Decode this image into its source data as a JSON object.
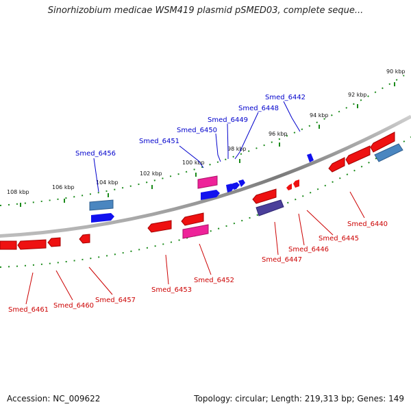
{
  "header": {
    "title": "Sinorhizobium medicae WSM419 plasmid pSMED03, complete seque..."
  },
  "footer": {
    "accession": "Accession: NC_009622",
    "summary": "Topology: circular; Length: 219,313 bp; Genes: 149"
  },
  "colors": {
    "forward_label": "#0000cc",
    "reverse_label": "#cc0000",
    "gene_red": "#ee1111",
    "gene_blue": "#1111ee",
    "gene_pink": "#ee2299",
    "gene_steel": "#4a86c0",
    "gene_purple": "#4a3f9a",
    "backbone": "#888888",
    "tick": "#1a8a1a"
  },
  "ticks": [
    {
      "label": "108 kbp"
    },
    {
      "label": "106 kbp"
    },
    {
      "label": "104 kbp"
    },
    {
      "label": "102 kbp"
    },
    {
      "label": "100 kbp"
    },
    {
      "label": "98 kbp"
    },
    {
      "label": "96 kbp"
    },
    {
      "label": "94 kbp"
    },
    {
      "label": "92 kbp"
    },
    {
      "label": "90 kbp"
    }
  ],
  "forward_labels": [
    {
      "text": "Smed_6456"
    },
    {
      "text": "Smed_6451"
    },
    {
      "text": "Smed_6450"
    },
    {
      "text": "Smed_6449"
    },
    {
      "text": "Smed_6448"
    },
    {
      "text": "Smed_6442"
    }
  ],
  "reverse_labels": [
    {
      "text": "Smed_6461"
    },
    {
      "text": "Smed_6460"
    },
    {
      "text": "Smed_6457"
    },
    {
      "text": "Smed_6453"
    },
    {
      "text": "Smed_6452"
    },
    {
      "text": "Smed_6447"
    },
    {
      "text": "Smed_6446"
    },
    {
      "text": "Smed_6445"
    },
    {
      "text": "Smed_6440"
    }
  ]
}
